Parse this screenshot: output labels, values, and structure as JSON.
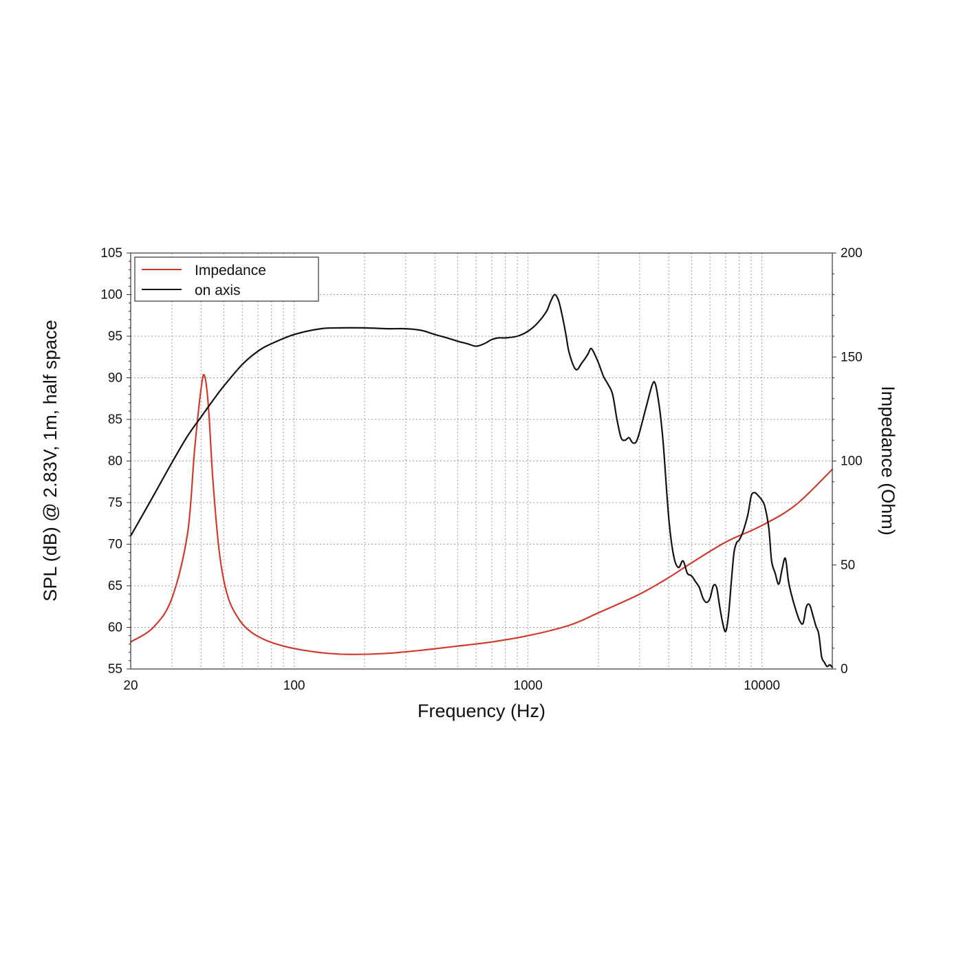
{
  "chart_data": {
    "type": "line",
    "xlabel": "Frequency (Hz)",
    "ylabel": "SPL (dB) @ 2.83V, 1m, half space",
    "y2label": "Impedance (Ohm)",
    "x_scale": "log",
    "xlim": [
      20,
      20000
    ],
    "ylim": [
      55,
      105
    ],
    "y2lim": [
      0,
      200
    ],
    "grid": true,
    "legend_position": "top-left",
    "x_ticks": [
      "20",
      "100",
      "1000",
      "10000"
    ],
    "y_ticks": [
      "55",
      "60",
      "65",
      "70",
      "75",
      "80",
      "85",
      "90",
      "95",
      "100",
      "105"
    ],
    "y2_ticks": [
      "0",
      "50",
      "100",
      "150",
      "200"
    ],
    "series": [
      {
        "name": "Impedance",
        "axis": "right",
        "color": "#d0392b",
        "x": [
          20,
          25,
          30,
          35,
          37.5,
          40,
          41.4,
          43,
          45,
          48,
          52,
          58,
          65,
          75,
          90,
          110,
          140,
          180,
          250,
          350,
          500,
          700,
          1000,
          1500,
          2000,
          3000,
          4000,
          5000,
          7000,
          10000,
          14000,
          20000
        ],
        "y": [
          13,
          20,
          34,
          65,
          105,
          135,
          141,
          126,
          90,
          55,
          35,
          24,
          18,
          14,
          11,
          9,
          7.5,
          7,
          7.5,
          9,
          11,
          13,
          16,
          21,
          27,
          36,
          44,
          51,
          61,
          69,
          79,
          96
        ]
      },
      {
        "name": "on axis",
        "axis": "left",
        "color": "#111111",
        "x": [
          20,
          25,
          30,
          35,
          40,
          45,
          50,
          60,
          70,
          80,
          100,
          130,
          160,
          200,
          250,
          300,
          350,
          400,
          450,
          500,
          550,
          600,
          650,
          700,
          750,
          800,
          900,
          1000,
          1100,
          1200,
          1250,
          1300,
          1350,
          1400,
          1450,
          1500,
          1600,
          1700,
          1800,
          1850,
          1900,
          2000,
          2100,
          2200,
          2300,
          2400,
          2500,
          2600,
          2700,
          2800,
          2900,
          3000,
          3200,
          3400,
          3500,
          3600,
          3700,
          3800,
          4000,
          4200,
          4400,
          4600,
          4800,
          5000,
          5200,
          5400,
          5600,
          5800,
          6000,
          6200,
          6400,
          6600,
          6800,
          7000,
          7200,
          7400,
          7600,
          7800,
          8000,
          8300,
          8700,
          9000,
          9300,
          9600,
          10000,
          10300,
          10700,
          11000,
          11400,
          11800,
          12200,
          12600,
          13000,
          13500,
          14000,
          14500,
          15000,
          15500,
          16000,
          16500,
          17000,
          17500,
          18000,
          18500,
          19000,
          19500,
          20000
        ],
        "y": [
          71,
          75.8,
          79.8,
          83,
          85.3,
          87.3,
          89,
          91.6,
          93.2,
          94.1,
          95.2,
          95.9,
          96,
          96,
          95.9,
          95.9,
          95.7,
          95.2,
          94.8,
          94.4,
          94.1,
          93.8,
          94.1,
          94.6,
          94.8,
          94.8,
          95,
          95.6,
          96.6,
          98,
          99.2,
          100,
          99.3,
          97.5,
          95.3,
          93,
          91,
          91.8,
          92.8,
          93.5,
          93.2,
          91.8,
          90.2,
          89.2,
          88,
          85,
          82.8,
          82.5,
          82.8,
          82.2,
          82.3,
          83.5,
          86.5,
          89.2,
          89.3,
          87.5,
          85,
          81.5,
          73,
          68.5,
          67.2,
          68,
          66.5,
          66.2,
          65.5,
          64.8,
          63.5,
          63,
          63.5,
          65,
          64.8,
          62.5,
          60.5,
          59.5,
          61.5,
          65.5,
          69,
          70.2,
          70.5,
          71.5,
          73.5,
          75.8,
          76.2,
          75.9,
          75.3,
          74.5,
          72,
          68,
          66.5,
          65.2,
          67,
          68.3,
          65.5,
          63.5,
          62,
          60.8,
          60.5,
          62.5,
          62.7,
          61.5,
          60.2,
          59.2,
          56.5,
          55.8,
          55.3,
          55.5,
          55.2
        ]
      }
    ]
  }
}
